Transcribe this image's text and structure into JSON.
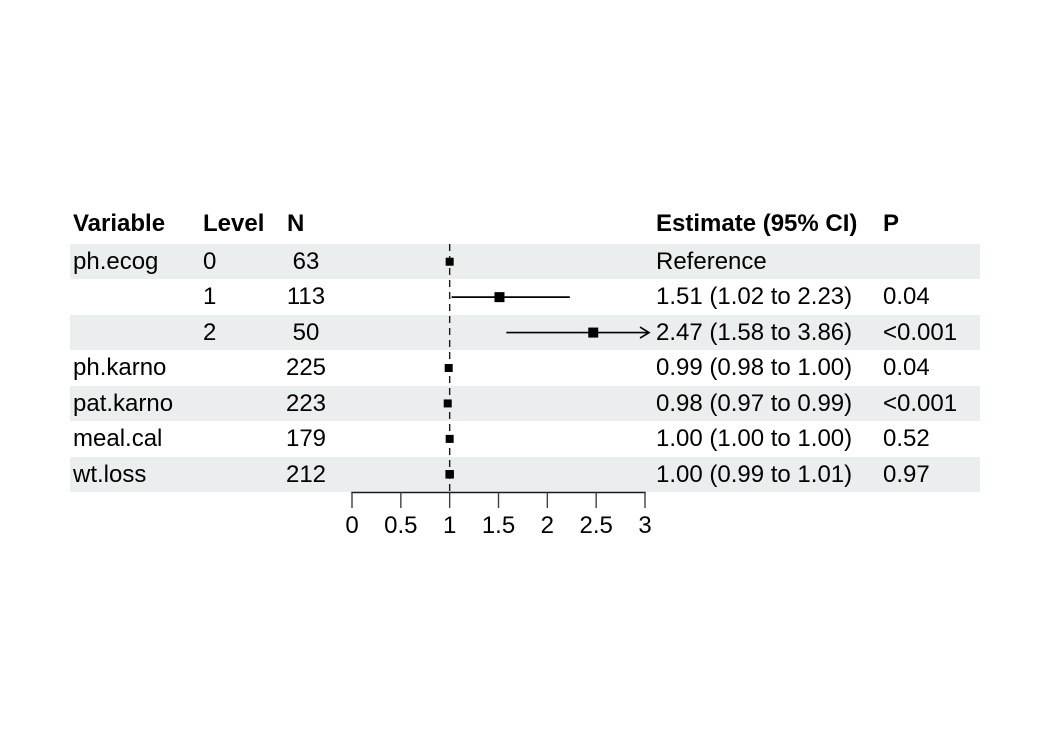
{
  "table": {
    "headers": {
      "variable": "Variable",
      "level": "Level",
      "n": "N",
      "estimate": "Estimate (95% CI)",
      "p": "P"
    }
  },
  "chart_data": {
    "type": "forest",
    "title": "",
    "xlabel": "",
    "ylabel": "",
    "xlim": [
      0,
      3
    ],
    "ticks": [
      0,
      0.5,
      1,
      1.5,
      2,
      2.5,
      3
    ],
    "tick_labels": [
      "0",
      "0.5",
      "1",
      "1.5",
      "2",
      "2.5",
      "3"
    ],
    "reference_line": 1,
    "grid": false,
    "legend": "none",
    "rows": [
      {
        "variable": "ph.ecog",
        "level": "0",
        "n": "63",
        "estimate": 1.0,
        "ci_low": 1.0,
        "ci_high": 1.0,
        "estimate_label": "Reference",
        "p": "",
        "marker_size": 8,
        "striped": true
      },
      {
        "variable": "",
        "level": "1",
        "n": "113",
        "estimate": 1.51,
        "ci_low": 1.02,
        "ci_high": 2.23,
        "estimate_label": "1.51 (1.02 to 2.23)",
        "p": "0.04",
        "marker_size": 10,
        "striped": false
      },
      {
        "variable": "",
        "level": "2",
        "n": "50",
        "estimate": 2.47,
        "ci_low": 1.58,
        "ci_high": 3.86,
        "estimate_label": "2.47 (1.58 to 3.86)",
        "p": "<0.001",
        "marker_size": 10,
        "striped": true
      },
      {
        "variable": "ph.karno",
        "level": "",
        "n": "225",
        "estimate": 0.99,
        "ci_low": 0.98,
        "ci_high": 1.0,
        "estimate_label": "0.99 (0.98 to 1.00)",
        "p": "0.04",
        "marker_size": 8,
        "striped": false
      },
      {
        "variable": "pat.karno",
        "level": "",
        "n": "223",
        "estimate": 0.98,
        "ci_low": 0.97,
        "ci_high": 0.99,
        "estimate_label": "0.98 (0.97 to 0.99)",
        "p": "<0.001",
        "marker_size": 8,
        "striped": true
      },
      {
        "variable": "meal.cal",
        "level": "",
        "n": "179",
        "estimate": 1.0,
        "ci_low": 1.0,
        "ci_high": 1.0,
        "estimate_label": "1.00 (1.00 to 1.00)",
        "p": "0.52",
        "marker_size": 8,
        "striped": false
      },
      {
        "variable": "wt.loss",
        "level": "",
        "n": "212",
        "estimate": 1.0,
        "ci_low": 0.99,
        "ci_high": 1.01,
        "estimate_label": "1.00 (0.99 to 1.01)",
        "p": "0.97",
        "marker_size": 8.5,
        "striped": true
      }
    ]
  }
}
